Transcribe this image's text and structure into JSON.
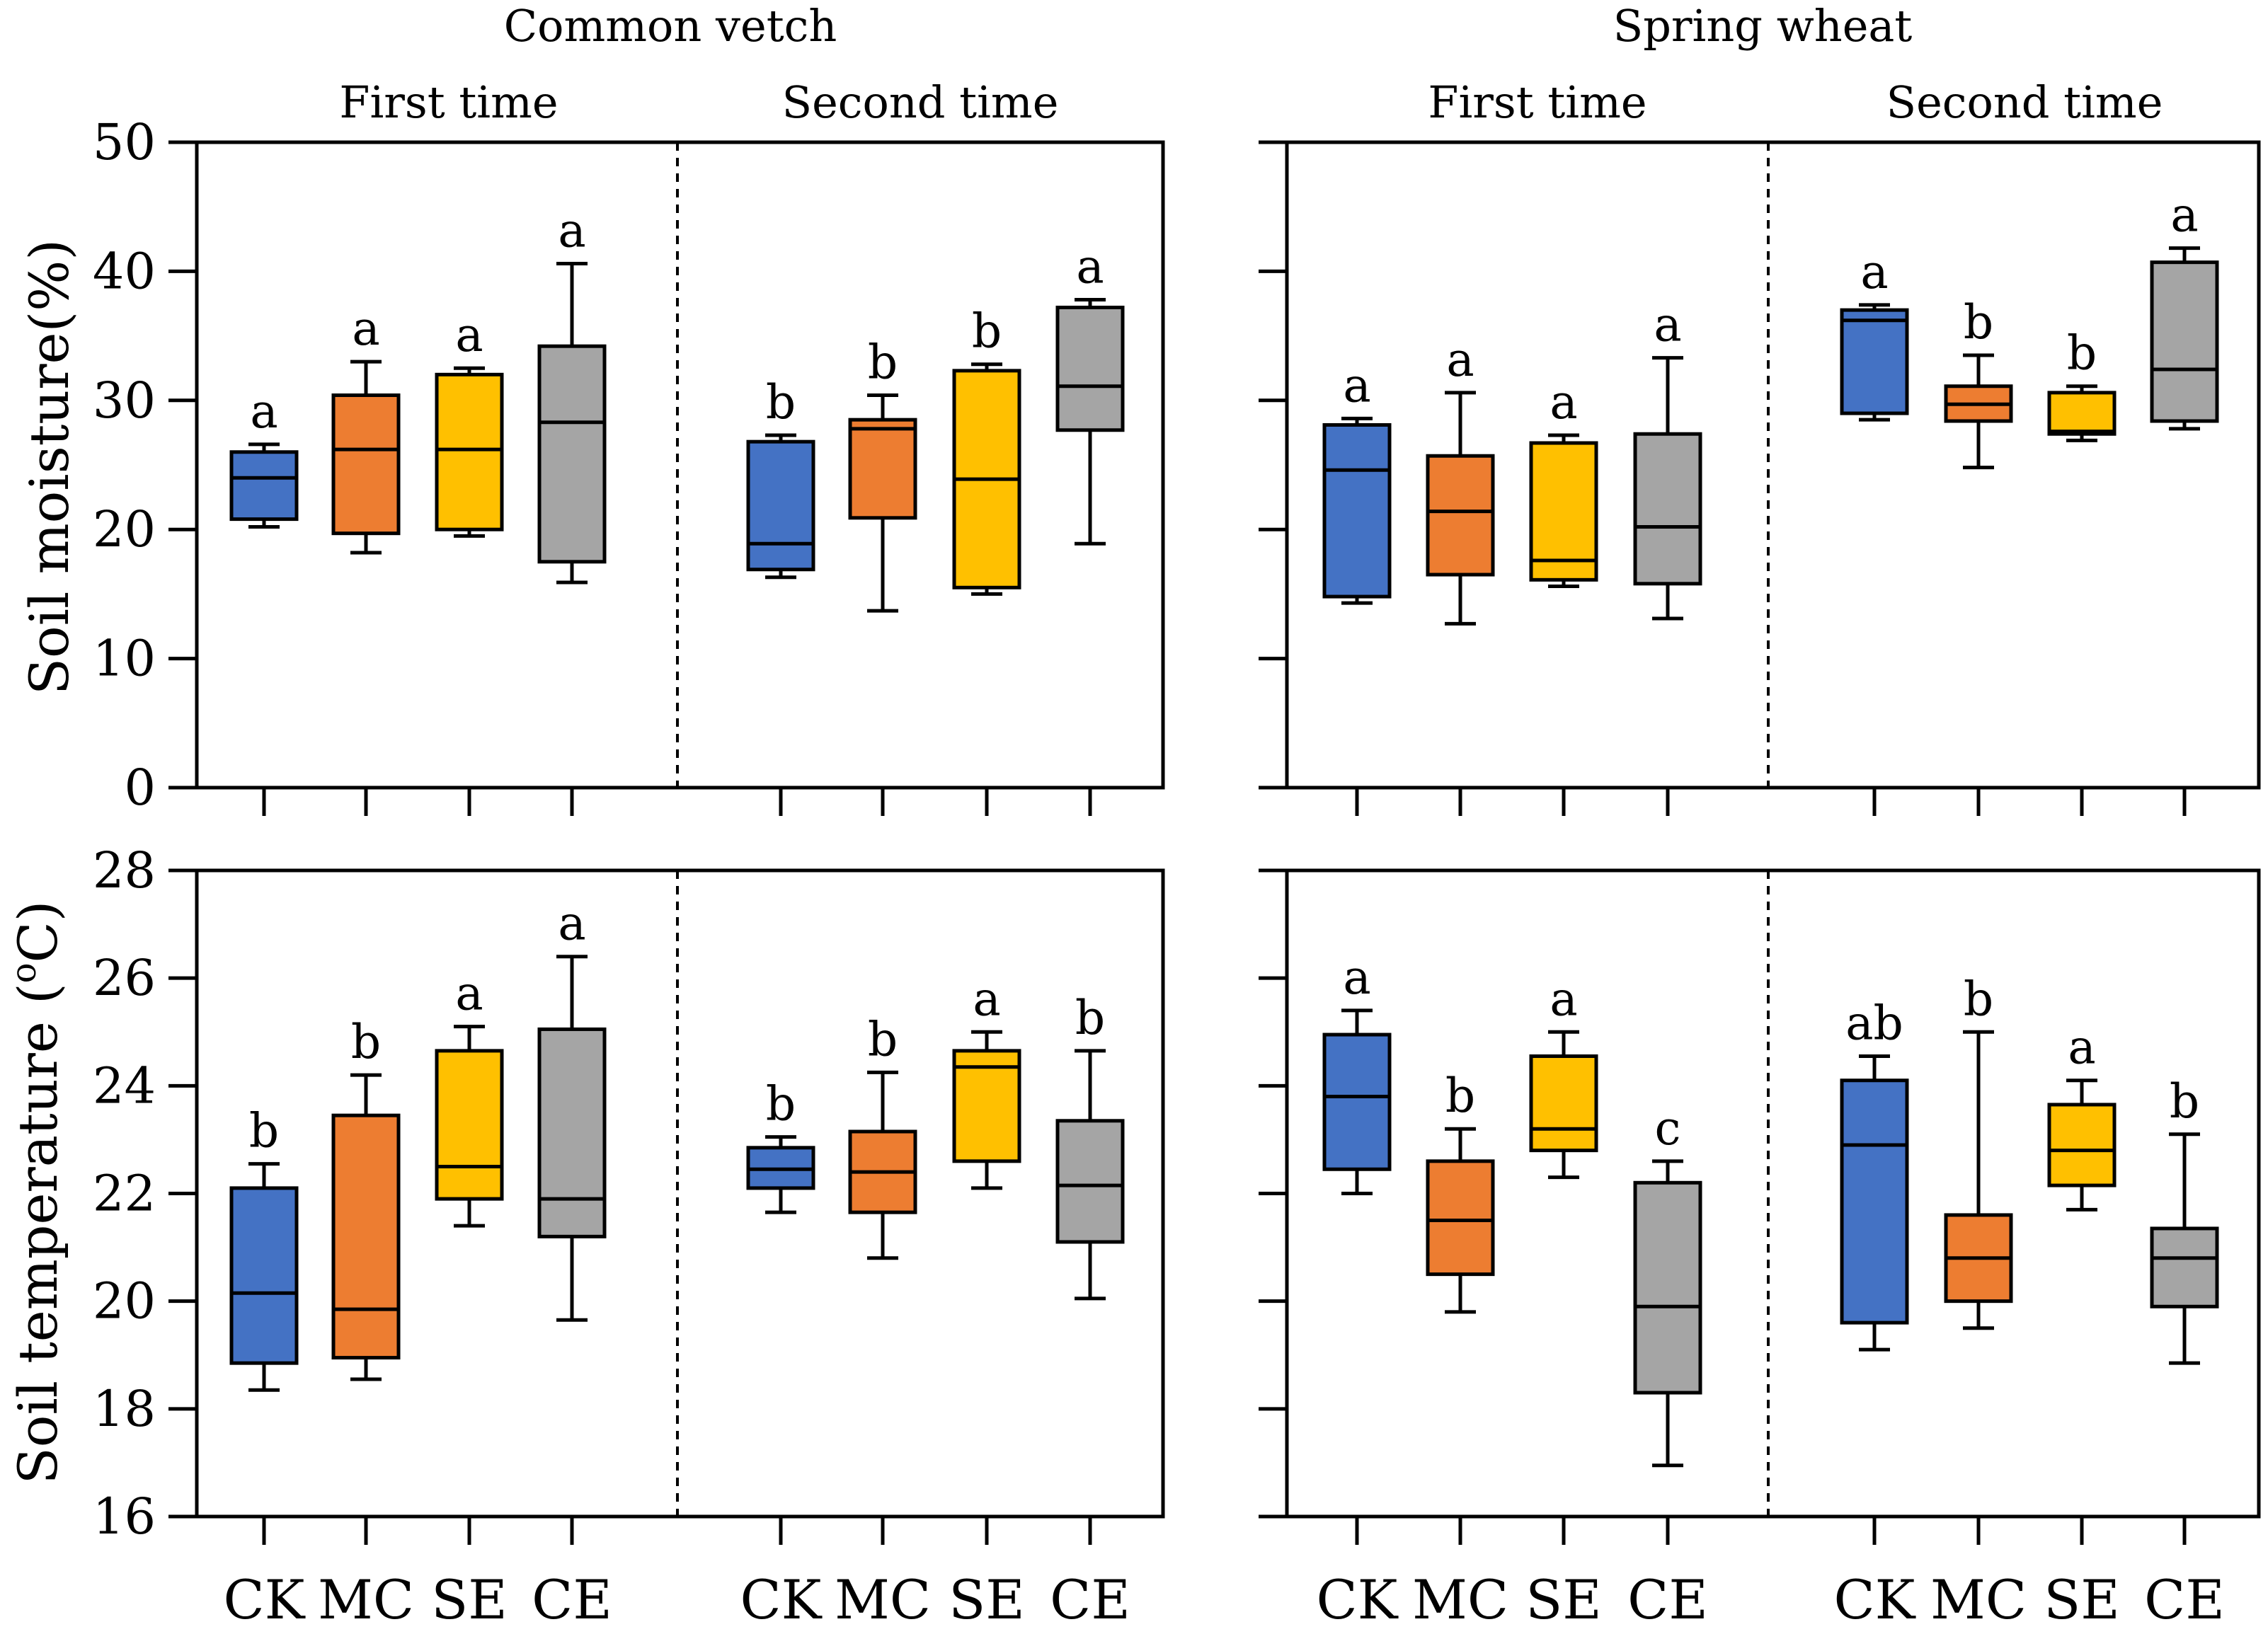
{
  "figure": {
    "col_titles": [
      "Common vetch",
      "Spring wheat"
    ],
    "time_labels": [
      "First time",
      "Second time"
    ],
    "row_ylabels": [
      "Soil moisture(%)",
      "Soil temperature ("
    ],
    "temp_unit_sup": "o",
    "temp_unit_letter": "C)"
  },
  "colors": {
    "CK": "#4472C4",
    "MC": "#ED7D31",
    "SE": "#FFC000",
    "CE": "#A5A5A5"
  },
  "chart_data": [
    {
      "type": "box",
      "title": "Common vetch",
      "ylabel": "Soil moisture(%)",
      "ylim": [
        0,
        50
      ],
      "yticks": [
        0,
        10,
        20,
        30,
        40,
        50
      ],
      "groups": [
        "First time",
        "Second time"
      ],
      "categories": [
        "CK",
        "MC",
        "SE",
        "CE"
      ],
      "boxes": [
        {
          "time": "First time",
          "cat": "CK",
          "min": 20.2,
          "q1": 20.8,
          "median": 24.0,
          "q3": 26.0,
          "max": 26.6,
          "letter": "a"
        },
        {
          "time": "First time",
          "cat": "MC",
          "min": 18.2,
          "q1": 19.7,
          "median": 26.2,
          "q3": 30.4,
          "max": 33.0,
          "letter": "a"
        },
        {
          "time": "First time",
          "cat": "SE",
          "min": 19.5,
          "q1": 20.0,
          "median": 26.2,
          "q3": 32.0,
          "max": 32.5,
          "letter": "a"
        },
        {
          "time": "First time",
          "cat": "CE",
          "min": 15.9,
          "q1": 17.5,
          "median": 28.3,
          "q3": 34.2,
          "max": 40.6,
          "letter": "a"
        },
        {
          "time": "Second time",
          "cat": "CK",
          "min": 16.3,
          "q1": 16.9,
          "median": 18.9,
          "q3": 26.8,
          "max": 27.3,
          "letter": "b"
        },
        {
          "time": "Second time",
          "cat": "MC",
          "min": 13.7,
          "q1": 20.9,
          "median": 27.8,
          "q3": 28.5,
          "max": 30.4,
          "letter": "b"
        },
        {
          "time": "Second time",
          "cat": "SE",
          "min": 15.0,
          "q1": 15.5,
          "median": 23.9,
          "q3": 32.3,
          "max": 32.8,
          "letter": "b"
        },
        {
          "time": "Second time",
          "cat": "CE",
          "min": 18.9,
          "q1": 27.7,
          "median": 31.1,
          "q3": 37.2,
          "max": 37.8,
          "letter": "a"
        }
      ]
    },
    {
      "type": "box",
      "title": "Spring wheat",
      "ylabel": "Soil moisture(%)",
      "ylim": [
        0,
        50
      ],
      "yticks": [
        0,
        10,
        20,
        30,
        40,
        50
      ],
      "groups": [
        "First time",
        "Second time"
      ],
      "categories": [
        "CK",
        "MC",
        "SE",
        "CE"
      ],
      "boxes": [
        {
          "time": "First time",
          "cat": "CK",
          "min": 14.3,
          "q1": 14.8,
          "median": 24.6,
          "q3": 28.1,
          "max": 28.6,
          "letter": "a"
        },
        {
          "time": "First time",
          "cat": "MC",
          "min": 12.7,
          "q1": 16.5,
          "median": 21.4,
          "q3": 25.7,
          "max": 30.6,
          "letter": "a"
        },
        {
          "time": "First time",
          "cat": "SE",
          "min": 15.6,
          "q1": 16.1,
          "median": 17.6,
          "q3": 26.7,
          "max": 27.3,
          "letter": "a"
        },
        {
          "time": "First time",
          "cat": "CE",
          "min": 13.1,
          "q1": 15.8,
          "median": 20.2,
          "q3": 27.4,
          "max": 33.3,
          "letter": "a"
        },
        {
          "time": "Second time",
          "cat": "CK",
          "min": 28.5,
          "q1": 29.0,
          "median": 36.2,
          "q3": 37.0,
          "max": 37.4,
          "letter": "a"
        },
        {
          "time": "Second time",
          "cat": "MC",
          "min": 24.8,
          "q1": 28.4,
          "median": 29.7,
          "q3": 31.1,
          "max": 33.5,
          "letter": "b"
        },
        {
          "time": "Second time",
          "cat": "SE",
          "min": 26.9,
          "q1": 27.4,
          "median": 27.6,
          "q3": 30.6,
          "max": 31.1,
          "letter": "b"
        },
        {
          "time": "Second time",
          "cat": "CE",
          "min": 27.8,
          "q1": 28.4,
          "median": 32.4,
          "q3": 40.7,
          "max": 41.8,
          "letter": "a"
        }
      ]
    },
    {
      "type": "box",
      "title": "Common vetch",
      "ylabel": "Soil temperature (oC)",
      "ylim": [
        16,
        28
      ],
      "yticks": [
        16,
        18,
        20,
        22,
        24,
        26,
        28
      ],
      "groups": [
        "First time",
        "Second time"
      ],
      "categories": [
        "CK",
        "MC",
        "SE",
        "CE"
      ],
      "boxes": [
        {
          "time": "First time",
          "cat": "CK",
          "min": 18.35,
          "q1": 18.85,
          "median": 20.15,
          "q3": 22.1,
          "max": 22.55,
          "letter": "b"
        },
        {
          "time": "First time",
          "cat": "MC",
          "min": 18.55,
          "q1": 18.95,
          "median": 19.85,
          "q3": 23.45,
          "max": 24.2,
          "letter": "b"
        },
        {
          "time": "First time",
          "cat": "SE",
          "min": 21.4,
          "q1": 21.9,
          "median": 22.5,
          "q3": 24.65,
          "max": 25.1,
          "letter": "a"
        },
        {
          "time": "First time",
          "cat": "CE",
          "min": 19.65,
          "q1": 21.2,
          "median": 21.9,
          "q3": 25.05,
          "max": 26.4,
          "letter": "a"
        },
        {
          "time": "Second time",
          "cat": "CK",
          "min": 21.65,
          "q1": 22.1,
          "median": 22.45,
          "q3": 22.85,
          "max": 23.05,
          "letter": "b"
        },
        {
          "time": "Second time",
          "cat": "MC",
          "min": 20.8,
          "q1": 21.65,
          "median": 22.4,
          "q3": 23.15,
          "max": 24.25,
          "letter": "b"
        },
        {
          "time": "Second time",
          "cat": "SE",
          "min": 22.1,
          "q1": 22.6,
          "median": 24.35,
          "q3": 24.65,
          "max": 25.0,
          "letter": "a"
        },
        {
          "time": "Second time",
          "cat": "CE",
          "min": 20.05,
          "q1": 21.1,
          "median": 22.15,
          "q3": 23.35,
          "max": 24.65,
          "letter": "b"
        }
      ]
    },
    {
      "type": "box",
      "title": "Spring wheat",
      "ylabel": "Soil temperature (oC)",
      "ylim": [
        16,
        28
      ],
      "yticks": [
        16,
        18,
        20,
        22,
        24,
        26,
        28
      ],
      "groups": [
        "First time",
        "Second time"
      ],
      "categories": [
        "CK",
        "MC",
        "SE",
        "CE"
      ],
      "boxes": [
        {
          "time": "First time",
          "cat": "CK",
          "min": 22.0,
          "q1": 22.45,
          "median": 23.8,
          "q3": 24.95,
          "max": 25.4,
          "letter": "a"
        },
        {
          "time": "First time",
          "cat": "MC",
          "min": 19.8,
          "q1": 20.5,
          "median": 21.5,
          "q3": 22.6,
          "max": 23.2,
          "letter": "b"
        },
        {
          "time": "First time",
          "cat": "SE",
          "min": 22.3,
          "q1": 22.8,
          "median": 23.2,
          "q3": 24.55,
          "max": 25.0,
          "letter": "a"
        },
        {
          "time": "First time",
          "cat": "CE",
          "min": 16.95,
          "q1": 18.3,
          "median": 19.9,
          "q3": 22.2,
          "max": 22.6,
          "letter": "c"
        },
        {
          "time": "Second time",
          "cat": "CK",
          "min": 19.1,
          "q1": 19.6,
          "median": 22.9,
          "q3": 24.1,
          "max": 24.55,
          "letter": "ab"
        },
        {
          "time": "Second time",
          "cat": "MC",
          "min": 19.5,
          "q1": 20.0,
          "median": 20.8,
          "q3": 21.6,
          "max": 25.0,
          "letter": "b"
        },
        {
          "time": "Second time",
          "cat": "SE",
          "min": 21.7,
          "q1": 22.15,
          "median": 22.8,
          "q3": 23.65,
          "max": 24.1,
          "letter": "a"
        },
        {
          "time": "Second time",
          "cat": "CE",
          "min": 18.85,
          "q1": 19.9,
          "median": 20.8,
          "q3": 21.35,
          "max": 23.1,
          "letter": "b"
        }
      ]
    }
  ]
}
